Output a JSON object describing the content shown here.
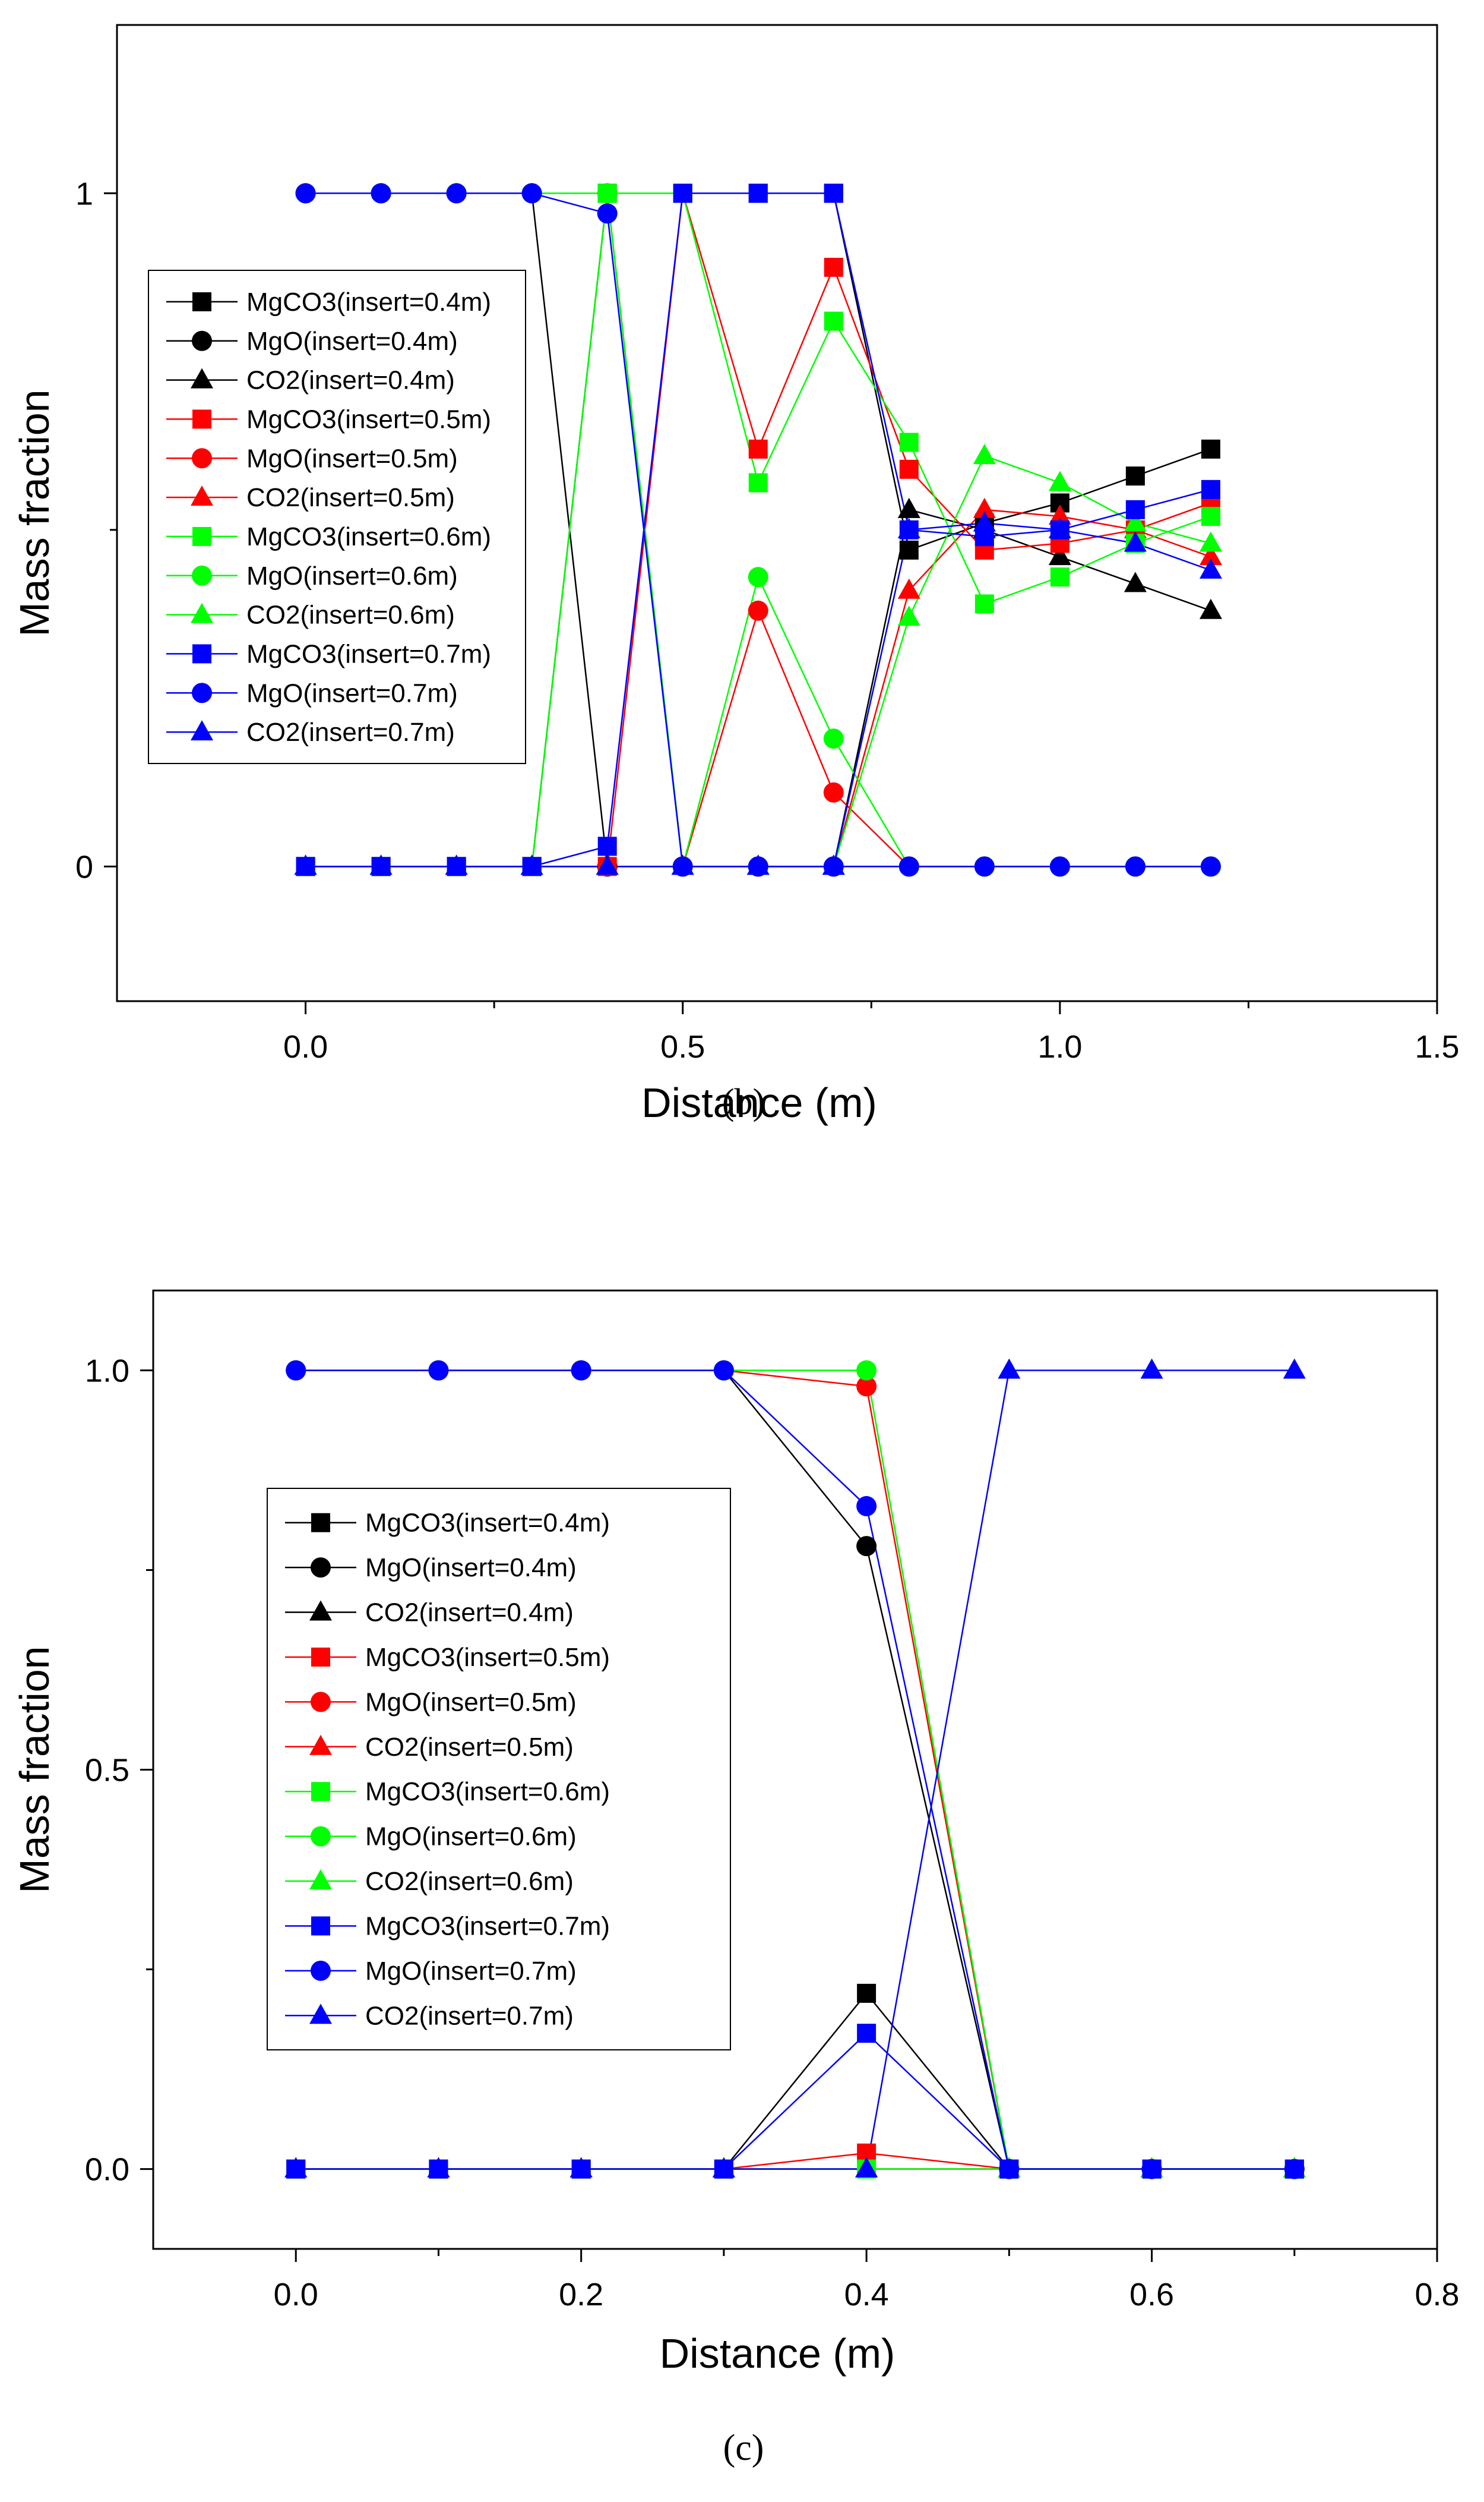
{
  "chart_data": [
    {
      "type": "line",
      "panel_label": "(b)",
      "xlabel": "Distance (m)",
      "ylabel": "Mass fraction",
      "xlim": [
        -0.25,
        1.5
      ],
      "ylim": [
        -0.2,
        1.25
      ],
      "xticks": [
        0.0,
        0.5,
        1.0,
        1.5
      ],
      "xtick_labels": [
        "0.0",
        "0.5",
        "1.0",
        "1.5"
      ],
      "xminor": [
        0.25,
        0.75,
        1.25
      ],
      "yticks": [
        0,
        1
      ],
      "ytick_labels": [
        "0",
        "1"
      ],
      "yminor": [
        0.5
      ],
      "legend": "upper-left",
      "series": [
        {
          "name": "MgCO3(insert=0.4m)",
          "color": "#000000",
          "marker": "square",
          "x": [
            0,
            0.1,
            0.2,
            0.3,
            0.4,
            0.5,
            0.6,
            0.7,
            0.8,
            0.9,
            1.0,
            1.1,
            1.2
          ],
          "y": [
            0,
            0,
            0,
            0,
            1,
            1,
            1,
            1,
            0.47,
            0.51,
            0.54,
            0.58,
            0.62
          ]
        },
        {
          "name": "MgO(insert=0.4m)",
          "color": "#000000",
          "marker": "circle",
          "x": [
            0,
            0.1,
            0.2,
            0.3,
            0.4,
            0.5,
            0.6,
            0.7,
            0.8,
            0.9,
            1.0,
            1.1,
            1.2
          ],
          "y": [
            1,
            1,
            1,
            1,
            0,
            0,
            0,
            0,
            0,
            0,
            0,
            0,
            0
          ]
        },
        {
          "name": "CO2(insert=0.4m)",
          "color": "#000000",
          "marker": "triangle",
          "x": [
            0,
            0.1,
            0.2,
            0.3,
            0.4,
            0.5,
            0.6,
            0.7,
            0.8,
            0.9,
            1.0,
            1.1,
            1.2
          ],
          "y": [
            0,
            0,
            0,
            0,
            0,
            0,
            0,
            0,
            0.53,
            0.5,
            0.46,
            0.42,
            0.38
          ]
        },
        {
          "name": "MgCO3(insert=0.5m)",
          "color": "#ff0000",
          "marker": "square",
          "x": [
            0,
            0.1,
            0.2,
            0.3,
            0.4,
            0.5,
            0.6,
            0.7,
            0.8,
            0.9,
            1.0,
            1.1,
            1.2
          ],
          "y": [
            0,
            0,
            0,
            0,
            0,
            1,
            0.62,
            0.89,
            0.59,
            0.47,
            0.48,
            0.5,
            0.54
          ]
        },
        {
          "name": "MgO(insert=0.5m)",
          "color": "#ff0000",
          "marker": "circle",
          "x": [
            0,
            0.1,
            0.2,
            0.3,
            0.4,
            0.5,
            0.6,
            0.7,
            0.8,
            0.9,
            1.0,
            1.1,
            1.2
          ],
          "y": [
            1,
            1,
            1,
            1,
            1,
            0,
            0.38,
            0.11,
            0,
            0,
            0,
            0,
            0
          ]
        },
        {
          "name": "CO2(insert=0.5m)",
          "color": "#ff0000",
          "marker": "triangle",
          "x": [
            0,
            0.1,
            0.2,
            0.3,
            0.4,
            0.5,
            0.6,
            0.7,
            0.8,
            0.9,
            1.0,
            1.1,
            1.2
          ],
          "y": [
            0,
            0,
            0,
            0,
            0,
            0,
            0,
            0,
            0.41,
            0.53,
            0.52,
            0.5,
            0.46
          ]
        },
        {
          "name": "MgCO3(insert=0.6m)",
          "color": "#00ff00",
          "marker": "square",
          "x": [
            0,
            0.1,
            0.2,
            0.3,
            0.4,
            0.5,
            0.6,
            0.7,
            0.8,
            0.9,
            1.0,
            1.1,
            1.2
          ],
          "y": [
            0,
            0,
            0,
            0,
            1,
            1,
            0.57,
            0.81,
            0.63,
            0.39,
            0.43,
            0.48,
            0.52
          ]
        },
        {
          "name": "MgO(insert=0.6m)",
          "color": "#00ff00",
          "marker": "circle",
          "x": [
            0,
            0.1,
            0.2,
            0.3,
            0.4,
            0.5,
            0.6,
            0.7,
            0.8,
            0.9,
            1.0,
            1.1,
            1.2
          ],
          "y": [
            1,
            1,
            1,
            1,
            1,
            0,
            0.43,
            0.19,
            0,
            0,
            0,
            0,
            0
          ]
        },
        {
          "name": "CO2(insert=0.6m)",
          "color": "#00ff00",
          "marker": "triangle",
          "x": [
            0,
            0.1,
            0.2,
            0.3,
            0.4,
            0.5,
            0.6,
            0.7,
            0.8,
            0.9,
            1.0,
            1.1,
            1.2
          ],
          "y": [
            0,
            0,
            0,
            0,
            0,
            0,
            0,
            0,
            0.37,
            0.61,
            0.57,
            0.51,
            0.48
          ]
        },
        {
          "name": "MgCO3(insert=0.7m)",
          "color": "#0000ff",
          "marker": "square",
          "x": [
            0,
            0.1,
            0.2,
            0.3,
            0.4,
            0.5,
            0.6,
            0.7,
            0.8,
            0.9,
            1.0,
            1.1,
            1.2
          ],
          "y": [
            0,
            0,
            0,
            0,
            0.03,
            1,
            1,
            1,
            0.5,
            0.49,
            0.5,
            0.53,
            0.56
          ]
        },
        {
          "name": "MgO(insert=0.7m)",
          "color": "#0000ff",
          "marker": "circle",
          "x": [
            0,
            0.1,
            0.2,
            0.3,
            0.4,
            0.5,
            0.6,
            0.7,
            0.8,
            0.9,
            1.0,
            1.1,
            1.2
          ],
          "y": [
            1,
            1,
            1,
            1,
            0.97,
            0,
            0,
            0,
            0,
            0,
            0,
            0,
            0
          ]
        },
        {
          "name": "CO2(insert=0.7m)",
          "color": "#0000ff",
          "marker": "triangle",
          "x": [
            0,
            0.1,
            0.2,
            0.3,
            0.4,
            0.5,
            0.6,
            0.7,
            0.8,
            0.9,
            1.0,
            1.1,
            1.2
          ],
          "y": [
            0,
            0,
            0,
            0,
            0,
            0,
            0,
            0,
            0.5,
            0.51,
            0.5,
            0.48,
            0.44
          ]
        }
      ]
    },
    {
      "type": "line",
      "panel_label": "(c)",
      "xlabel": "Distance (m)",
      "ylabel": "Mass fraction",
      "xlim": [
        -0.1,
        0.8
      ],
      "ylim": [
        -0.1,
        1.1
      ],
      "xticks": [
        0.0,
        0.2,
        0.4,
        0.6,
        0.8
      ],
      "xtick_labels": [
        "0.0",
        "0.2",
        "0.4",
        "0.6",
        "0.8"
      ],
      "xminor": [
        0.1,
        0.3,
        0.5,
        0.7
      ],
      "yticks": [
        0.0,
        0.5,
        1.0
      ],
      "ytick_labels": [
        "0.0",
        "0.5",
        "1.0"
      ],
      "yminor": [
        0.25,
        0.75
      ],
      "legend": "center-left",
      "series": [
        {
          "name": "MgCO3(insert=0.4m)",
          "color": "#000000",
          "marker": "square",
          "x": [
            0,
            0.1,
            0.2,
            0.3,
            0.4,
            0.5,
            0.6,
            0.7
          ],
          "y": [
            0,
            0,
            0,
            0,
            0.22,
            0,
            0,
            0
          ]
        },
        {
          "name": "MgO(insert=0.4m)",
          "color": "#000000",
          "marker": "circle",
          "x": [
            0,
            0.1,
            0.2,
            0.3,
            0.4,
            0.5,
            0.6,
            0.7
          ],
          "y": [
            1,
            1,
            1,
            1,
            0.78,
            0,
            0,
            0
          ]
        },
        {
          "name": "CO2(insert=0.4m)",
          "color": "#000000",
          "marker": "triangle",
          "x": [
            0,
            0.1,
            0.2,
            0.3,
            0.4,
            0.5,
            0.6,
            0.7
          ],
          "y": [
            0,
            0,
            0,
            0,
            0,
            0,
            0,
            0
          ]
        },
        {
          "name": "MgCO3(insert=0.5m)",
          "color": "#ff0000",
          "marker": "square",
          "x": [
            0,
            0.1,
            0.2,
            0.3,
            0.4,
            0.5,
            0.6,
            0.7
          ],
          "y": [
            0,
            0,
            0,
            0,
            0.02,
            0,
            0,
            0
          ]
        },
        {
          "name": "MgO(insert=0.5m)",
          "color": "#ff0000",
          "marker": "circle",
          "x": [
            0,
            0.1,
            0.2,
            0.3,
            0.4,
            0.5,
            0.6,
            0.7
          ],
          "y": [
            1,
            1,
            1,
            1,
            0.98,
            0,
            0,
            0
          ]
        },
        {
          "name": "CO2(insert=0.5m)",
          "color": "#ff0000",
          "marker": "triangle",
          "x": [
            0,
            0.1,
            0.2,
            0.3,
            0.4,
            0.5,
            0.6,
            0.7
          ],
          "y": [
            0,
            0,
            0,
            0,
            0,
            0,
            0,
            0
          ]
        },
        {
          "name": "MgCO3(insert=0.6m)",
          "color": "#00ff00",
          "marker": "square",
          "x": [
            0,
            0.1,
            0.2,
            0.3,
            0.4,
            0.5,
            0.6,
            0.7
          ],
          "y": [
            0,
            0,
            0,
            0,
            0,
            0,
            0,
            0
          ]
        },
        {
          "name": "MgO(insert=0.6m)",
          "color": "#00ff00",
          "marker": "circle",
          "x": [
            0,
            0.1,
            0.2,
            0.3,
            0.4,
            0.5,
            0.6,
            0.7
          ],
          "y": [
            1,
            1,
            1,
            1,
            1,
            0,
            0,
            0
          ]
        },
        {
          "name": "CO2(insert=0.6m)",
          "color": "#00ff00",
          "marker": "triangle",
          "x": [
            0,
            0.1,
            0.2,
            0.3,
            0.4,
            0.5,
            0.6,
            0.7
          ],
          "y": [
            0,
            0,
            0,
            0,
            0,
            0,
            0,
            0
          ]
        },
        {
          "name": "MgCO3(insert=0.7m)",
          "color": "#0000ff",
          "marker": "square",
          "x": [
            0,
            0.1,
            0.2,
            0.3,
            0.4,
            0.5,
            0.6,
            0.7
          ],
          "y": [
            0,
            0,
            0,
            0,
            0.17,
            0,
            0,
            0
          ]
        },
        {
          "name": "MgO(insert=0.7m)",
          "color": "#0000ff",
          "marker": "circle",
          "x": [
            0,
            0.1,
            0.2,
            0.3,
            0.4,
            0.5,
            0.6,
            0.7
          ],
          "y": [
            1,
            1,
            1,
            1,
            0.83,
            0,
            0,
            0
          ]
        },
        {
          "name": "CO2(insert=0.7m)",
          "color": "#0000ff",
          "marker": "triangle",
          "x": [
            0,
            0.1,
            0.2,
            0.3,
            0.4,
            0.5,
            0.6,
            0.7
          ],
          "y": [
            0,
            0,
            0,
            0,
            0,
            1,
            1,
            1
          ]
        }
      ]
    }
  ]
}
